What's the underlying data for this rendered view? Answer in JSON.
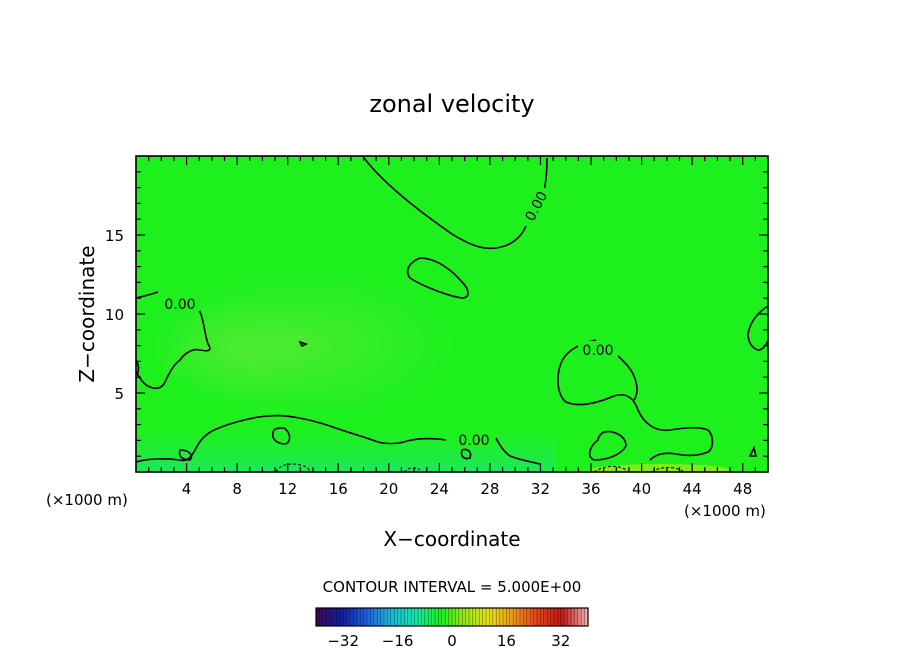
{
  "chart_data": {
    "type": "heatmap",
    "title": "zonal velocity",
    "xlabel": "X−coordinate",
    "ylabel": "Z−coordinate",
    "x_unit": "(×1000 m)",
    "z_unit": "(×1000 m)",
    "xlim": [
      0,
      50
    ],
    "ylim": [
      0,
      20
    ],
    "x_ticks": [
      4,
      8,
      12,
      16,
      20,
      24,
      28,
      32,
      36,
      40,
      44,
      48
    ],
    "y_ticks": [
      5,
      10,
      15
    ],
    "contour_interval_text": "CONTOUR INTERVAL = 5.000E+00",
    "contour_label": "0.00",
    "colorbar": {
      "range": [
        -40,
        40
      ],
      "ticks": [
        -32,
        -16,
        0,
        16,
        32
      ],
      "colors": [
        "#3a0a5a",
        "#1020a0",
        "#1e5fe0",
        "#1ab8d8",
        "#18e8a8",
        "#18f020",
        "#9ae818",
        "#e8e018",
        "#f09818",
        "#e84018",
        "#c01818",
        "#f0a8a8"
      ]
    },
    "field_color": "#1ef01e",
    "grid": false
  }
}
